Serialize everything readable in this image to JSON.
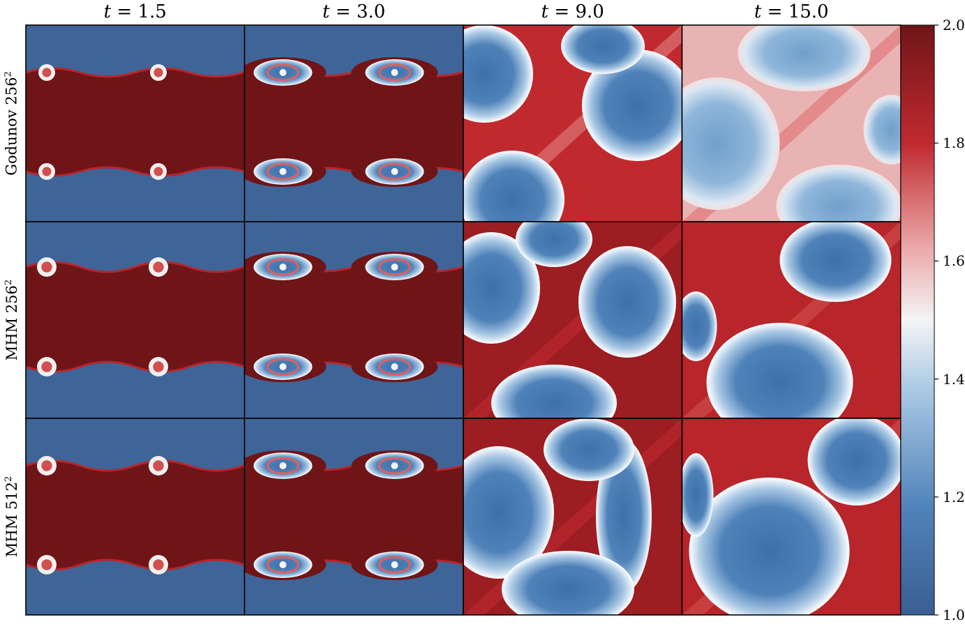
{
  "chart_data": {
    "type": "heatmap",
    "columns": [
      {
        "var": "t",
        "value": "1.5"
      },
      {
        "var": "t",
        "value": "3.0"
      },
      {
        "var": "t",
        "value": "9.0"
      },
      {
        "var": "t",
        "value": "15.0"
      }
    ],
    "rows": [
      {
        "method": "Godunov",
        "resolution": "256",
        "exponent": "2"
      },
      {
        "method": "MHM",
        "resolution": "256",
        "exponent": "2"
      },
      {
        "method": "MHM",
        "resolution": "512",
        "exponent": "2"
      }
    ],
    "colorbar": {
      "range": [
        1.0,
        2.0
      ],
      "ticks": [
        "1.0",
        "1.2",
        "1.4",
        "1.6",
        "1.8",
        "2.0"
      ],
      "colormap": [
        "#3a5f94",
        "#4f82b9",
        "#8fb6da",
        "#f1f1f1",
        "#e07f82",
        "#c02a2f",
        "#6f1518"
      ]
    }
  }
}
